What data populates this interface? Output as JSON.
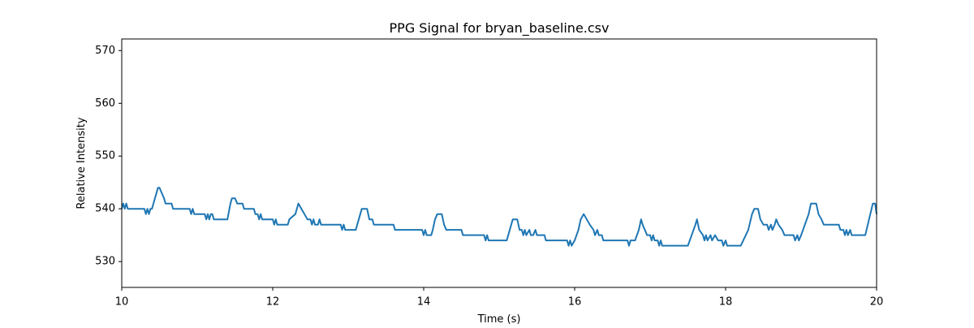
{
  "chart_data": {
    "type": "line",
    "title": "PPG Signal for bryan_baseline.csv",
    "xlabel": "Time (s)",
    "ylabel": "Relative Intensity",
    "xlim": [
      10,
      20
    ],
    "xticks": [
      10,
      12,
      14,
      16,
      18,
      20
    ],
    "ylim": [
      525.1,
      572.2
    ],
    "yticks": [
      530,
      540,
      550,
      560,
      570
    ],
    "series": [
      {
        "color": "#1f77b4",
        "x": [
          10.0,
          10.02,
          10.04,
          10.06,
          10.08,
          10.3,
          10.32,
          10.34,
          10.36,
          10.38,
          10.4,
          10.44,
          10.48,
          10.5,
          10.53,
          10.56,
          10.58,
          10.66,
          10.68,
          10.9,
          10.92,
          10.94,
          10.96,
          11.0,
          11.1,
          11.12,
          11.14,
          11.16,
          11.18,
          11.2,
          11.22,
          11.3,
          11.4,
          11.44,
          11.46,
          11.5,
          11.53,
          11.6,
          11.62,
          11.75,
          11.77,
          11.8,
          11.82,
          11.84,
          11.86,
          11.9,
          12.0,
          12.02,
          12.04,
          12.06,
          12.1,
          12.2,
          12.22,
          12.3,
          12.34,
          12.38,
          12.42,
          12.46,
          12.5,
          12.52,
          12.54,
          12.56,
          12.6,
          12.62,
          12.64,
          12.7,
          12.9,
          12.92,
          12.94,
          12.96,
          13.0,
          13.1,
          13.14,
          13.18,
          13.25,
          13.28,
          13.32,
          13.34,
          13.6,
          13.62,
          13.98,
          14.0,
          14.02,
          14.04,
          14.1,
          14.12,
          14.15,
          14.18,
          14.24,
          14.27,
          14.3,
          14.5,
          14.52,
          14.8,
          14.82,
          14.84,
          14.86,
          14.9,
          15.1,
          15.14,
          15.18,
          15.24,
          15.27,
          15.3,
          15.32,
          15.34,
          15.36,
          15.4,
          15.42,
          15.45,
          15.48,
          15.5,
          15.6,
          15.62,
          15.9,
          15.92,
          15.94,
          15.96,
          16.0,
          16.05,
          16.08,
          16.12,
          16.16,
          16.2,
          16.25,
          16.27,
          16.3,
          16.32,
          16.36,
          16.38,
          16.7,
          16.72,
          16.74,
          16.8,
          16.85,
          16.88,
          16.9,
          16.93,
          16.96,
          17.0,
          17.02,
          17.04,
          17.06,
          17.1,
          17.12,
          17.14,
          17.16,
          17.5,
          17.55,
          17.6,
          17.62,
          17.65,
          17.7,
          17.72,
          17.74,
          17.76,
          17.8,
          17.82,
          17.86,
          17.9,
          17.95,
          17.97,
          18.0,
          18.02,
          18.2,
          18.3,
          18.35,
          18.38,
          18.43,
          18.46,
          18.5,
          18.55,
          18.57,
          18.6,
          18.62,
          18.65,
          18.67,
          18.7,
          18.75,
          18.78,
          18.9,
          18.92,
          18.95,
          18.97,
          19.0,
          19.05,
          19.1,
          19.13,
          19.2,
          19.23,
          19.27,
          19.3,
          19.5,
          19.52,
          19.56,
          19.58,
          19.6,
          19.62,
          19.65,
          19.67,
          19.85,
          19.9,
          19.95,
          19.98,
          20.0
        ],
        "values": [
          540,
          541,
          540,
          541,
          540,
          540,
          539,
          540,
          539,
          540,
          540,
          542,
          544,
          544,
          543,
          542,
          541,
          541,
          540,
          540,
          539,
          540,
          539,
          539,
          539,
          538,
          539,
          538,
          539,
          539,
          538,
          538,
          538,
          541,
          542,
          542,
          541,
          541,
          540,
          540,
          539,
          539,
          538,
          539,
          538,
          538,
          538,
          537,
          538,
          537,
          537,
          537,
          538,
          539,
          541,
          540,
          539,
          538,
          538,
          537,
          538,
          537,
          537,
          538,
          537,
          537,
          537,
          536,
          537,
          536,
          536,
          536,
          538,
          540,
          540,
          538,
          538,
          537,
          537,
          536,
          536,
          535,
          536,
          535,
          535,
          536,
          538,
          539,
          539,
          537,
          536,
          536,
          535,
          535,
          534,
          535,
          534,
          534,
          534,
          536,
          538,
          538,
          536,
          536,
          535,
          536,
          535,
          536,
          535,
          535,
          536,
          535,
          535,
          534,
          534,
          533,
          534,
          533,
          534,
          536,
          538,
          539,
          538,
          537,
          536,
          535,
          536,
          535,
          535,
          534,
          534,
          533,
          534,
          534,
          536,
          538,
          537,
          536,
          535,
          535,
          534,
          535,
          534,
          534,
          533,
          534,
          533,
          533,
          535,
          537,
          538,
          536,
          535,
          534,
          535,
          534,
          535,
          534,
          535,
          534,
          534,
          533,
          534,
          533,
          533,
          536,
          539,
          540,
          540,
          538,
          537,
          537,
          536,
          537,
          536,
          537,
          538,
          537,
          536,
          535,
          535,
          534,
          535,
          534,
          535,
          537,
          539,
          541,
          541,
          539,
          538,
          537,
          537,
          536,
          536,
          535,
          536,
          535,
          536,
          535,
          535,
          538,
          541,
          541,
          539
        ]
      }
    ]
  }
}
